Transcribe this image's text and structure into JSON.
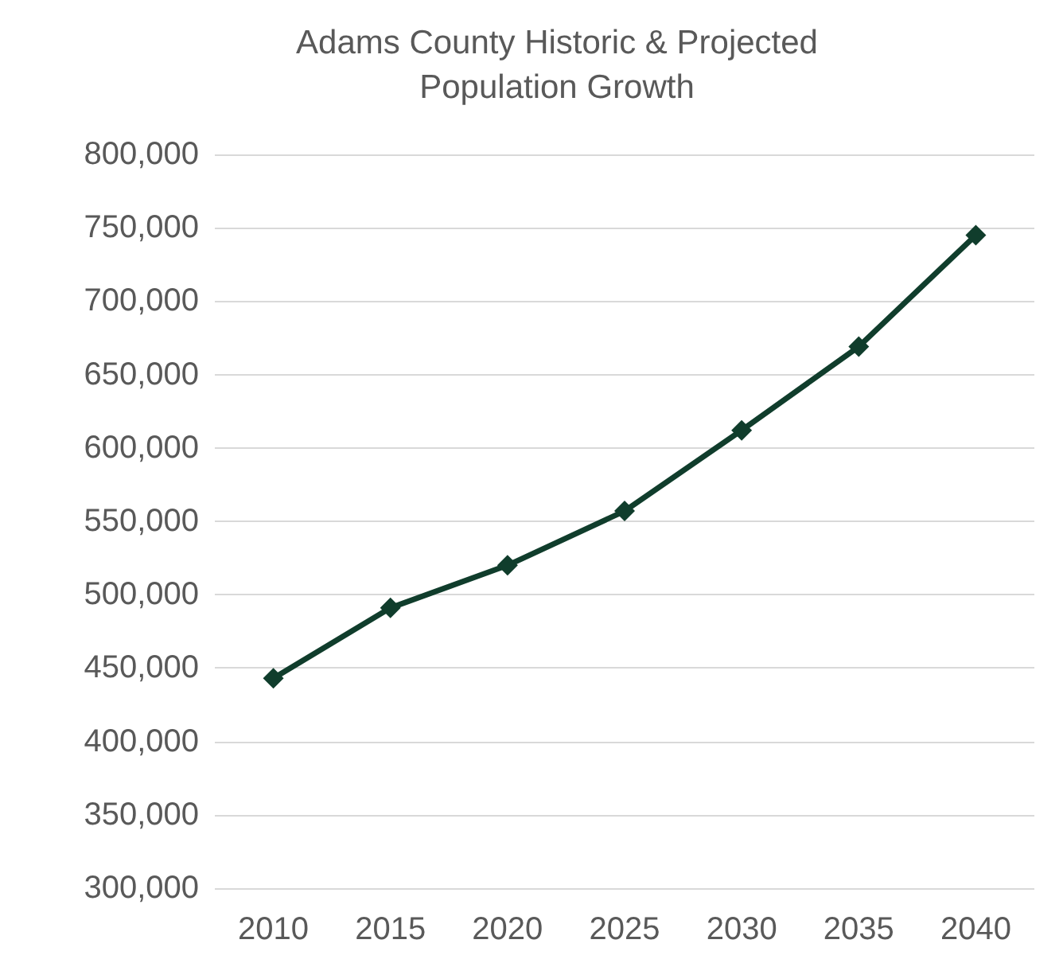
{
  "chart_data": {
    "type": "line",
    "title": "Adams County Historic & Projected\nPopulation Growth",
    "categories": [
      "2010",
      "2015",
      "2020",
      "2025",
      "2030",
      "2035",
      "2040"
    ],
    "series": [
      {
        "color": "#103d2c",
        "values": [
          443000,
          491000,
          520000,
          557000,
          612000,
          669000,
          745000
        ]
      }
    ],
    "ylim": [
      300000,
      800000
    ],
    "yticks": [
      {
        "value": 300000,
        "label": "300,000"
      },
      {
        "value": 350000,
        "label": "350,000"
      },
      {
        "value": 400000,
        "label": "400,000"
      },
      {
        "value": 450000,
        "label": "450,000"
      },
      {
        "value": 500000,
        "label": "500,000"
      },
      {
        "value": 550000,
        "label": "550,000"
      },
      {
        "value": 600000,
        "label": "600,000"
      },
      {
        "value": 650000,
        "label": "650,000"
      },
      {
        "value": 700000,
        "label": "700,000"
      },
      {
        "value": 750000,
        "label": "750,000"
      },
      {
        "value": 800000,
        "label": "800,000"
      }
    ],
    "grid": "y",
    "marker": "diamond",
    "line_style": "solid"
  }
}
